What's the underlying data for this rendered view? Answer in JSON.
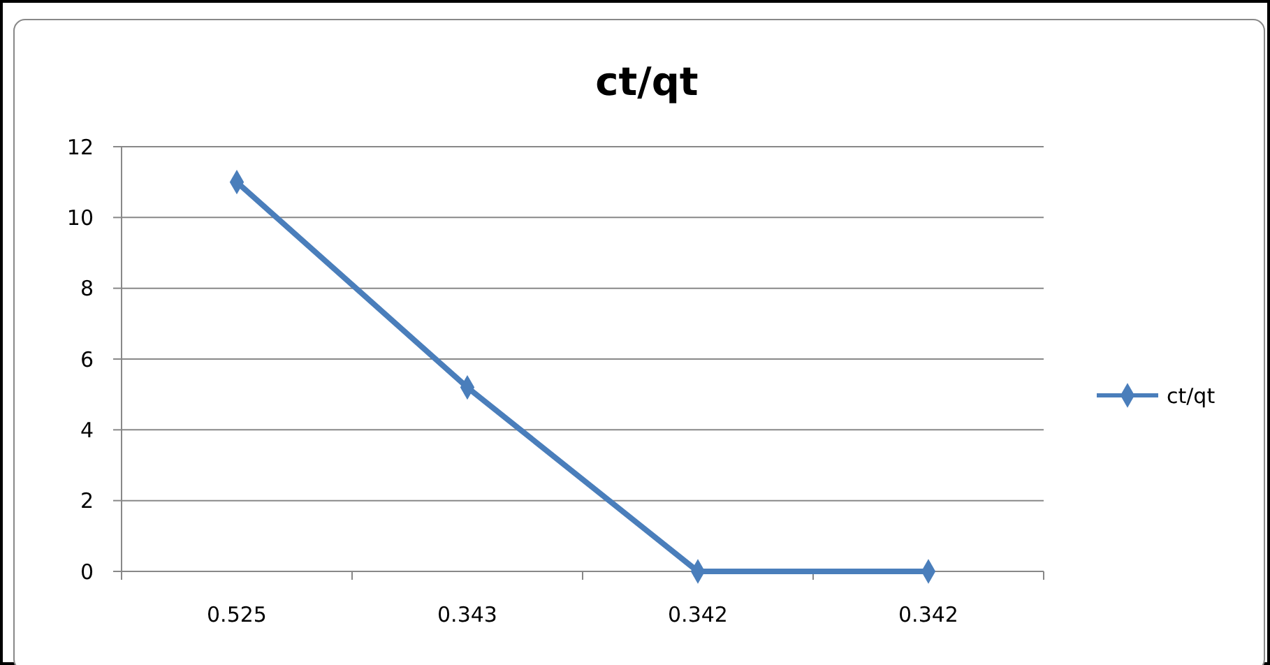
{
  "chart_data": {
    "type": "line",
    "title": "ct/qt",
    "categories": [
      "0.525",
      "0.343",
      "0.342",
      "0.342"
    ],
    "series": [
      {
        "name": "ct/qt",
        "color": "#4a7ebb",
        "values": [
          11,
          5.2,
          0,
          0
        ]
      }
    ],
    "ylim": [
      0,
      12
    ],
    "yticks": [
      0,
      2,
      4,
      6,
      8,
      10,
      12
    ],
    "grid": "y",
    "legend": "right",
    "marker": "diamond",
    "line_style": "solid"
  }
}
